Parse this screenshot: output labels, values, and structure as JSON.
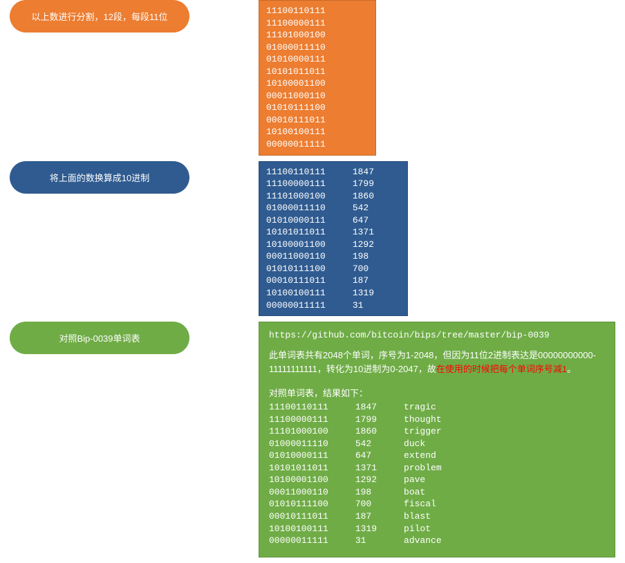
{
  "colors": {
    "orange": "#ec7d31",
    "blue": "#2f5b90",
    "green": "#6fac46",
    "red": "#ff0000",
    "white": "#ffffff"
  },
  "section1": {
    "label": "以上数进行分割，12段，每段11位",
    "lines": [
      "11100110111",
      "11100000111",
      "11101000100",
      "01000011110",
      "01010000111",
      "10101011011",
      "10100001100",
      "00011000110",
      "01010111100",
      "00010111011",
      "10100100111",
      "00000011111"
    ]
  },
  "section2": {
    "label": "将上面的数换算成10进制",
    "rows": [
      {
        "bin": "11100110111",
        "dec": "1847"
      },
      {
        "bin": "11100000111",
        "dec": "1799"
      },
      {
        "bin": "11101000100",
        "dec": "1860"
      },
      {
        "bin": "01000011110",
        "dec": "542"
      },
      {
        "bin": "01010000111",
        "dec": "647"
      },
      {
        "bin": "10101011011",
        "dec": "1371"
      },
      {
        "bin": "10100001100",
        "dec": "1292"
      },
      {
        "bin": "00011000110",
        "dec": "198"
      },
      {
        "bin": "01010111100",
        "dec": "700"
      },
      {
        "bin": "00010111011",
        "dec": "187"
      },
      {
        "bin": "10100100111",
        "dec": "1319"
      },
      {
        "bin": "00000011111",
        "dec": "31"
      }
    ]
  },
  "section3": {
    "label": "对照Bip-0039单词表",
    "url": "https://github.com/bitcoin/bips/tree/master/bip-0039",
    "desc_prefix": "此单词表共有2048个单词，序号为1-2048，但因为11位2进制表达是00000000000-11111111111，转化为10进制为0-2047，故",
    "desc_red": "在使用的时候把每个单词序号减1",
    "desc_suffix": "。",
    "result_header": "对照单词表，结果如下：",
    "rows": [
      {
        "bin": "11100110111",
        "dec": "1847",
        "word": "tragic"
      },
      {
        "bin": "11100000111",
        "dec": "1799",
        "word": "thought"
      },
      {
        "bin": "11101000100",
        "dec": "1860",
        "word": "trigger"
      },
      {
        "bin": "01000011110",
        "dec": "542",
        "word": "duck"
      },
      {
        "bin": "01010000111",
        "dec": "647",
        "word": "extend"
      },
      {
        "bin": "10101011011",
        "dec": "1371",
        "word": "problem"
      },
      {
        "bin": "10100001100",
        "dec": "1292",
        "word": "pave"
      },
      {
        "bin": "00011000110",
        "dec": "198",
        "word": "boat"
      },
      {
        "bin": "01010111100",
        "dec": "700",
        "word": "fiscal"
      },
      {
        "bin": "00010111011",
        "dec": "187",
        "word": "blast"
      },
      {
        "bin": "10100100111",
        "dec": "1319",
        "word": "pilot"
      },
      {
        "bin": "00000011111",
        "dec": "31",
        "word": "advance"
      }
    ]
  }
}
